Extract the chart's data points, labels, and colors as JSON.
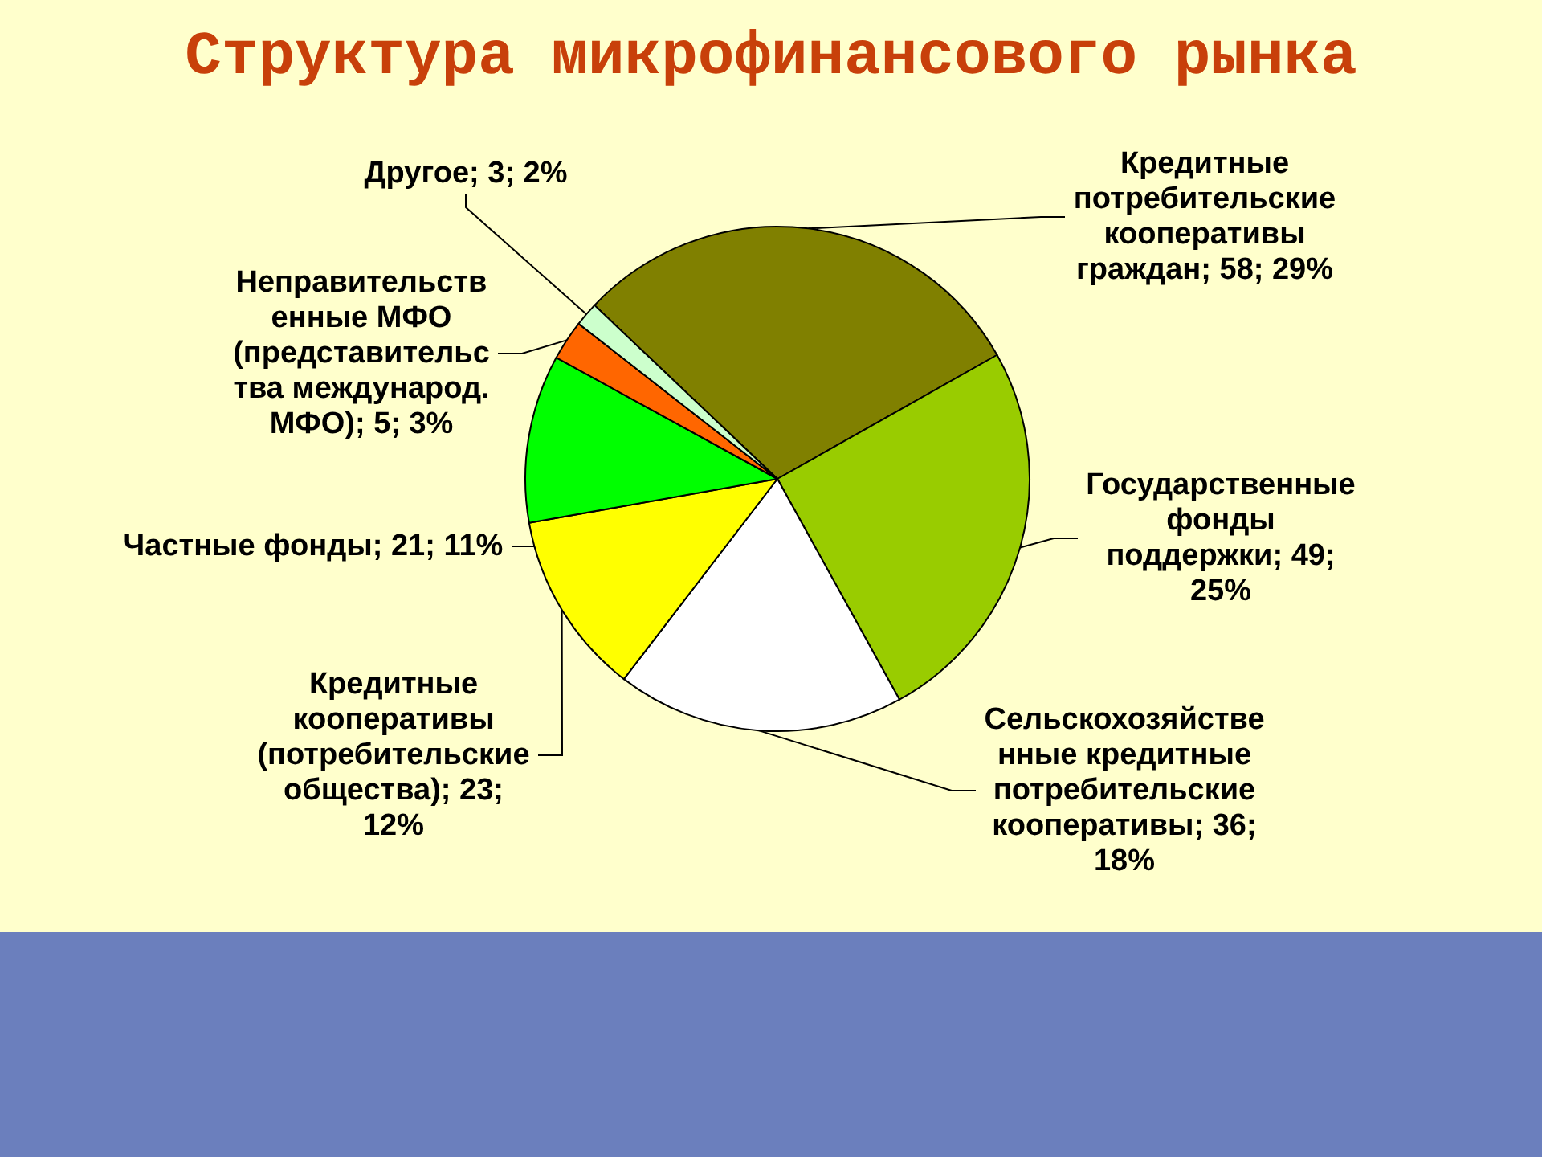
{
  "chart_data": {
    "type": "pie",
    "title": "Структура микрофинансового рынка",
    "categories": [
      "Кредитные потребительские кооперативы граждан",
      "Государственные фонды поддержки",
      "Сельскохозяйственные кредитные потребительские кооперативы",
      "Кредитные кооперативы (потребительские общества)",
      "Частные фонды",
      "Неправительственные МФО (представительства международ. МФО)",
      "Другое"
    ],
    "values": [
      58,
      49,
      36,
      23,
      21,
      5,
      3
    ],
    "colors": [
      "#808000",
      "#99cc00",
      "#ffffff",
      "#ffff00",
      "#00ff00",
      "#ff6600",
      "#ccffcc"
    ],
    "value_labels": [
      "58; 29%",
      "49; 25%",
      "36; 18%",
      "23; 12%",
      "21; 11%",
      "5; 3%",
      "3; 2%"
    ]
  }
}
